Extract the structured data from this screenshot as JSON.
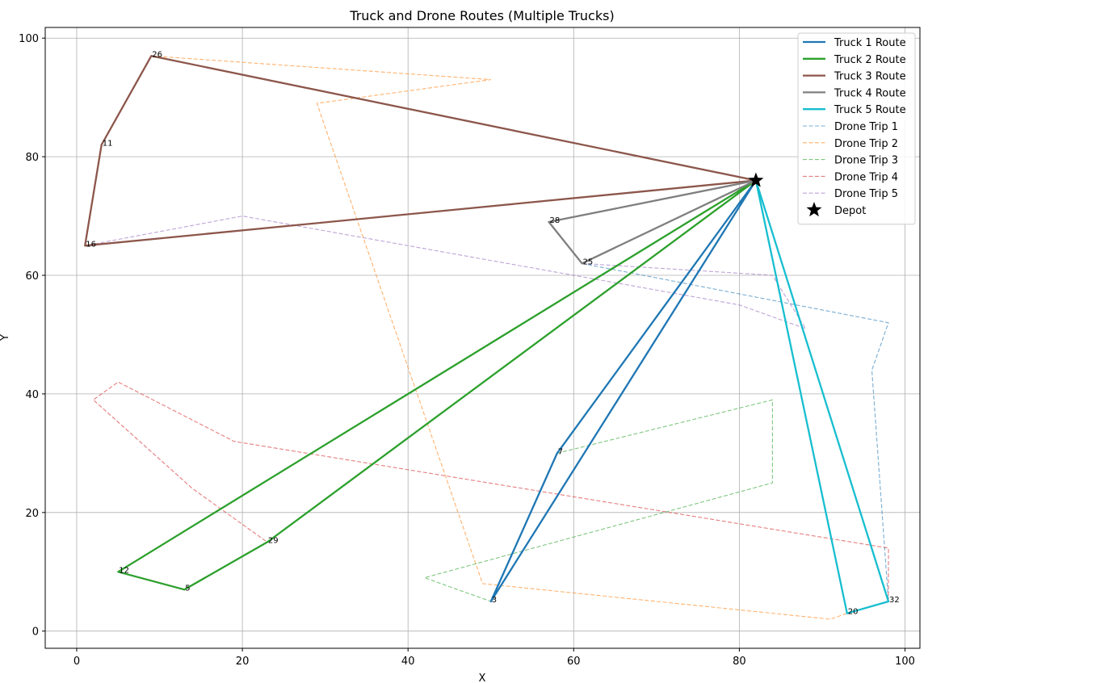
{
  "chart_data": {
    "type": "line",
    "title": "Truck and Drone Routes (Multiple Trucks)",
    "xlabel": "X",
    "ylabel": "Y",
    "xlim": [
      -3.8,
      101.8
    ],
    "ylim": [
      -2.9,
      101.8
    ],
    "xticks": [
      0,
      20,
      40,
      60,
      80,
      100
    ],
    "yticks": [
      0,
      20,
      40,
      60,
      80,
      100
    ],
    "grid": true,
    "legend_position": "top-right",
    "depot": {
      "name": "Depot",
      "x": 82,
      "y": 76,
      "color": "#000000"
    },
    "trucks": [
      {
        "name": "Truck 1 Route",
        "color": "#1f77b4",
        "points": [
          [
            82,
            76
          ],
          [
            58,
            30
          ],
          [
            50,
            5
          ],
          [
            82,
            76
          ]
        ]
      },
      {
        "name": "Truck 2 Route",
        "color": "#2ca02c",
        "points": [
          [
            82,
            76
          ],
          [
            23,
            15
          ],
          [
            13,
            7
          ],
          [
            5,
            10
          ],
          [
            82,
            76
          ]
        ]
      },
      {
        "name": "Truck 3 Route",
        "color": "#8c564b",
        "points": [
          [
            82,
            76
          ],
          [
            1,
            65
          ],
          [
            3,
            82
          ],
          [
            9,
            97
          ],
          [
            82,
            76
          ]
        ]
      },
      {
        "name": "Truck 4 Route",
        "color": "#7f7f7f",
        "points": [
          [
            82,
            76
          ],
          [
            61,
            62
          ],
          [
            57,
            69
          ],
          [
            82,
            76
          ]
        ]
      },
      {
        "name": "Truck 5 Route",
        "color": "#17becf",
        "points": [
          [
            82,
            76
          ],
          [
            98,
            5
          ],
          [
            93,
            3
          ],
          [
            82,
            76
          ]
        ]
      }
    ],
    "drones": [
      {
        "name": "Drone Trip 1",
        "color": "#1f77b4",
        "points": [
          [
            61,
            62
          ],
          [
            98,
            52
          ],
          [
            96,
            44
          ],
          [
            98,
            5
          ]
        ]
      },
      {
        "name": "Drone Trip 2",
        "color": "#ff7f0e",
        "points": [
          [
            9,
            97
          ],
          [
            50,
            93
          ],
          [
            29,
            89
          ],
          [
            49,
            8
          ],
          [
            91,
            2
          ],
          [
            93,
            3
          ]
        ]
      },
      {
        "name": "Drone Trip 3",
        "color": "#2ca02c",
        "points": [
          [
            58,
            30
          ],
          [
            84,
            39
          ],
          [
            84,
            25
          ],
          [
            42,
            9
          ],
          [
            50,
            5
          ]
        ]
      },
      {
        "name": "Drone Trip 4",
        "color": "#d62728",
        "points": [
          [
            98,
            5
          ],
          [
            98,
            14
          ],
          [
            19,
            32
          ],
          [
            5,
            42
          ],
          [
            2,
            39
          ],
          [
            14,
            24
          ],
          [
            23,
            15
          ]
        ]
      },
      {
        "name": "Drone Trip 5",
        "color": "#9467bd",
        "points": [
          [
            61,
            62
          ],
          [
            84,
            60
          ],
          [
            88,
            51
          ],
          [
            80,
            55
          ],
          [
            20,
            70
          ],
          [
            1,
            65
          ]
        ]
      }
    ],
    "node_labels": [
      {
        "label": "26",
        "x": 9,
        "y": 97
      },
      {
        "label": "11",
        "x": 3,
        "y": 82
      },
      {
        "label": "16",
        "x": 1,
        "y": 65
      },
      {
        "label": "28",
        "x": 57,
        "y": 69
      },
      {
        "label": "25",
        "x": 61,
        "y": 62
      },
      {
        "label": "7",
        "x": 58,
        "y": 30
      },
      {
        "label": "29",
        "x": 23,
        "y": 15
      },
      {
        "label": "12",
        "x": 5,
        "y": 10
      },
      {
        "label": "5",
        "x": 13,
        "y": 7
      },
      {
        "label": "3",
        "x": 50,
        "y": 5
      },
      {
        "label": "20",
        "x": 93,
        "y": 3
      },
      {
        "label": "32",
        "x": 98,
        "y": 5
      }
    ]
  }
}
